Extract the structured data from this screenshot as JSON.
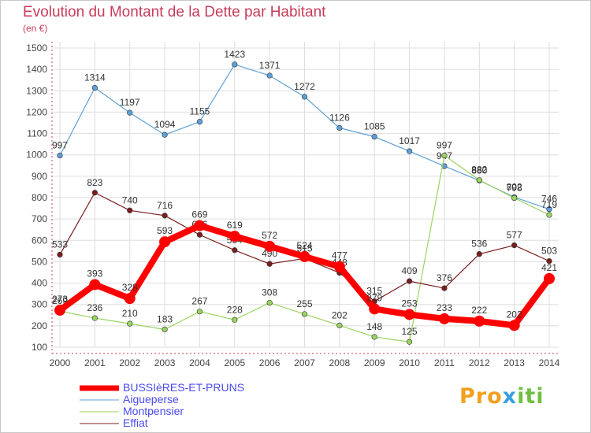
{
  "header": {
    "title": "Evolution du Montant de la Dette par Habitant",
    "subtitle": "(en €)"
  },
  "logo": {
    "text": "Proxiti"
  },
  "chart_data": {
    "type": "line",
    "title": "Evolution du Montant de la Dette par Habitant",
    "subtitle": "(en €)",
    "xlabel": "",
    "ylabel": "",
    "x": [
      2000,
      2001,
      2002,
      2003,
      2004,
      2005,
      2006,
      2007,
      2008,
      2009,
      2010,
      2011,
      2012,
      2013,
      2014
    ],
    "ylim": [
      100,
      1500
    ],
    "yticks": [
      100,
      200,
      300,
      400,
      500,
      600,
      700,
      800,
      900,
      1000,
      1100,
      1200,
      1300,
      1400,
      1500
    ],
    "grid": true,
    "legend_position": "bottom-left",
    "series": [
      {
        "name": "BUSSIèRES-ET-PRUNS",
        "color": "#ff0000",
        "values": [
          273,
          393,
          328,
          593,
          669,
          619,
          572,
          524,
          477,
          279,
          253,
          233,
          222,
          202,
          421
        ]
      },
      {
        "name": "Aigueperse",
        "color": "#5ea0d8",
        "values": [
          997,
          1314,
          1197,
          1094,
          1155,
          1423,
          1371,
          1272,
          1126,
          1085,
          1017,
          947,
          880,
          802,
          746
        ]
      },
      {
        "name": "Montpensier",
        "color": "#9ad460",
        "values": [
          269,
          236,
          210,
          183,
          267,
          228,
          308,
          255,
          202,
          148,
          125,
          997,
          882,
          798,
          719
        ]
      },
      {
        "name": "Effiat",
        "color": "#7a1e1e",
        "values": [
          533,
          823,
          740,
          716,
          626,
          554,
          490,
          515,
          448,
          315,
          409,
          376,
          536,
          577,
          503
        ]
      }
    ]
  }
}
